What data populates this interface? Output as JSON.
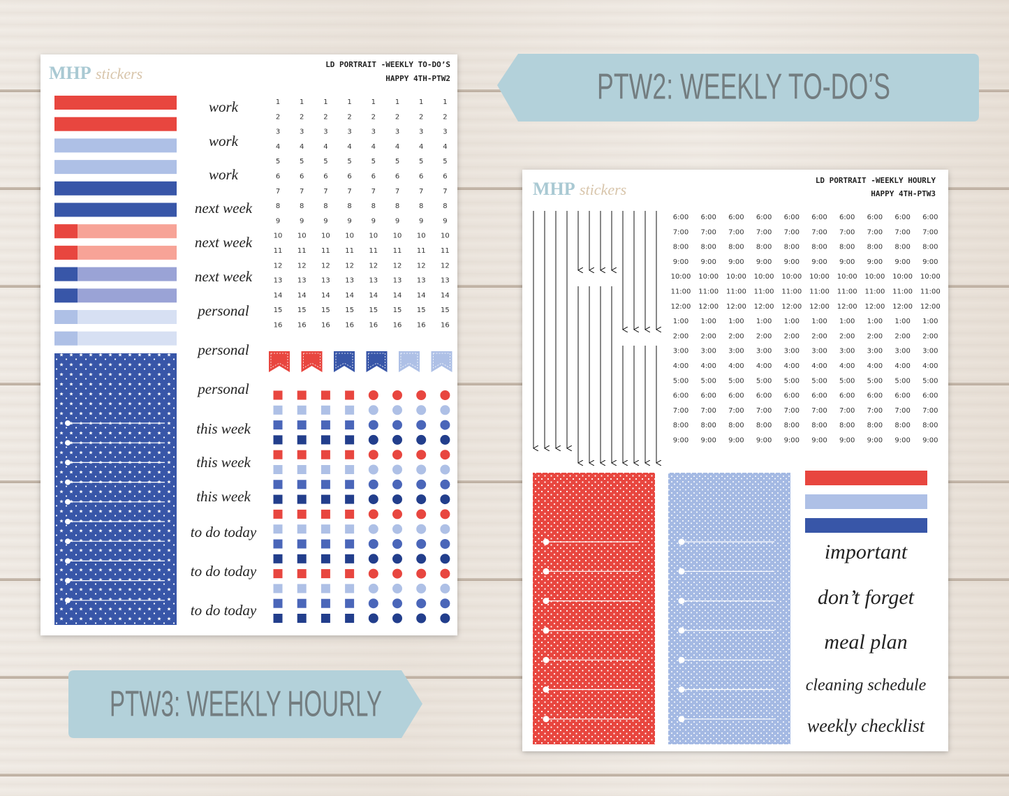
{
  "banners": {
    "ptw2": "PTW2: WEEKLY TO-DO’S",
    "ptw3": "PTW3: WEEKLY HOURLY"
  },
  "sheet_ptw2": {
    "logo": {
      "brand": "MHP",
      "suffix": "stickers"
    },
    "title_lines": [
      "LD PORTRAIT -WEEKLY TO-DO’S",
      "HAPPY 4TH-PTW2"
    ],
    "labels": [
      "work",
      "work",
      "work",
      "next week",
      "next week",
      "next week",
      "personal",
      "personal",
      "personal",
      "this week",
      "this week",
      "this week",
      "to do today",
      "to do today",
      "to do today"
    ],
    "date_numbers": [
      "1",
      "2",
      "3",
      "4",
      "5",
      "6",
      "7",
      "8",
      "9",
      "10",
      "11",
      "12",
      "13",
      "14",
      "15",
      "16"
    ]
  },
  "sheet_ptw3": {
    "logo": {
      "brand": "MHP",
      "suffix": "stickers"
    },
    "title_lines": [
      "LD PORTRAIT -WEEKLY HOURLY",
      "HAPPY 4TH-PTW3"
    ],
    "times": [
      "6:00",
      "7:00",
      "8:00",
      "9:00",
      "10:00",
      "11:00",
      "12:00",
      "1:00",
      "2:00",
      "3:00",
      "4:00",
      "5:00",
      "6:00",
      "7:00",
      "8:00",
      "9:00"
    ],
    "labels": [
      "important",
      "don’t forget",
      "meal plan",
      "cleaning schedule",
      "weekly checklist"
    ]
  }
}
